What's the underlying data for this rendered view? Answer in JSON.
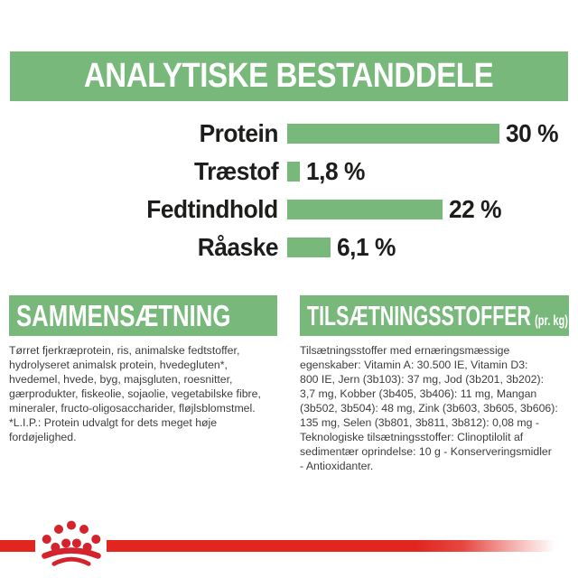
{
  "colors": {
    "green": "#78b97b",
    "band_red": "#e2261f",
    "crown_red": "#d3232c",
    "text_dark": "#1d1d1b",
    "body_text": "#3d3d3c",
    "background": "#ffffff"
  },
  "chart_data": {
    "type": "bar",
    "orientation": "horizontal",
    "title": "ANALYTISKE BESTANDDELE",
    "categories": [
      "Protein",
      "Træstof",
      "Fedtindhold",
      "Råaske"
    ],
    "values": [
      30,
      1.8,
      22,
      6.1
    ],
    "value_labels": [
      "30 %",
      "1,8 %",
      "22 %",
      "6,1 %"
    ],
    "unit": "%",
    "xlim": [
      0,
      30
    ],
    "grid": false,
    "legend": false,
    "bar_color": "#78b97b"
  },
  "sections": {
    "composition": {
      "title": "SAMMENSÆTNING",
      "lines": [
        "Tørret fjerkræprotein, ris, animalske fedtstoffer,",
        "hydrolyseret animalsk protein, hvedegluten*,",
        "hvedemel, hvede, byg, majsgluten, roesnitter,",
        "gærprodukter, fiskeolie, sojaolie, vegetabilske fibre,",
        "mineraler, fructo-oligosaccharider, fløjlsblomstmel.",
        "*L.I.P.: Protein udvalgt for dets meget høje",
        "fordøjelighed."
      ]
    },
    "additives": {
      "title": "TILSÆTNINGSSTOFFER",
      "title_suffix": "(pr. kg)",
      "lines": [
        "Tilsætningsstoffer med ernæringsmæssige",
        "egenskaber: Vitamin A: 30.500 IE, Vitamin D3:",
        "800 IE, Jern (3b103): 37 mg, Jod (3b201, 3b202):",
        "3,7 mg, Kobber (3b405, 3b406): 11 mg, Mangan",
        "(3b502, 3b504): 48 mg, Zink (3b603, 3b605, 3b606):",
        "135 mg, Selen (3b801, 3b811, 3b812): 0,08 mg -",
        "Teknologiske tilsætningsstoffer: Clinoptilolit af",
        "sedimentær oprindelse: 10 g - Konserveringsmidler",
        "- Antioxidanter."
      ]
    }
  },
  "footer": {
    "logo": "royal-canin-crown-icon"
  }
}
